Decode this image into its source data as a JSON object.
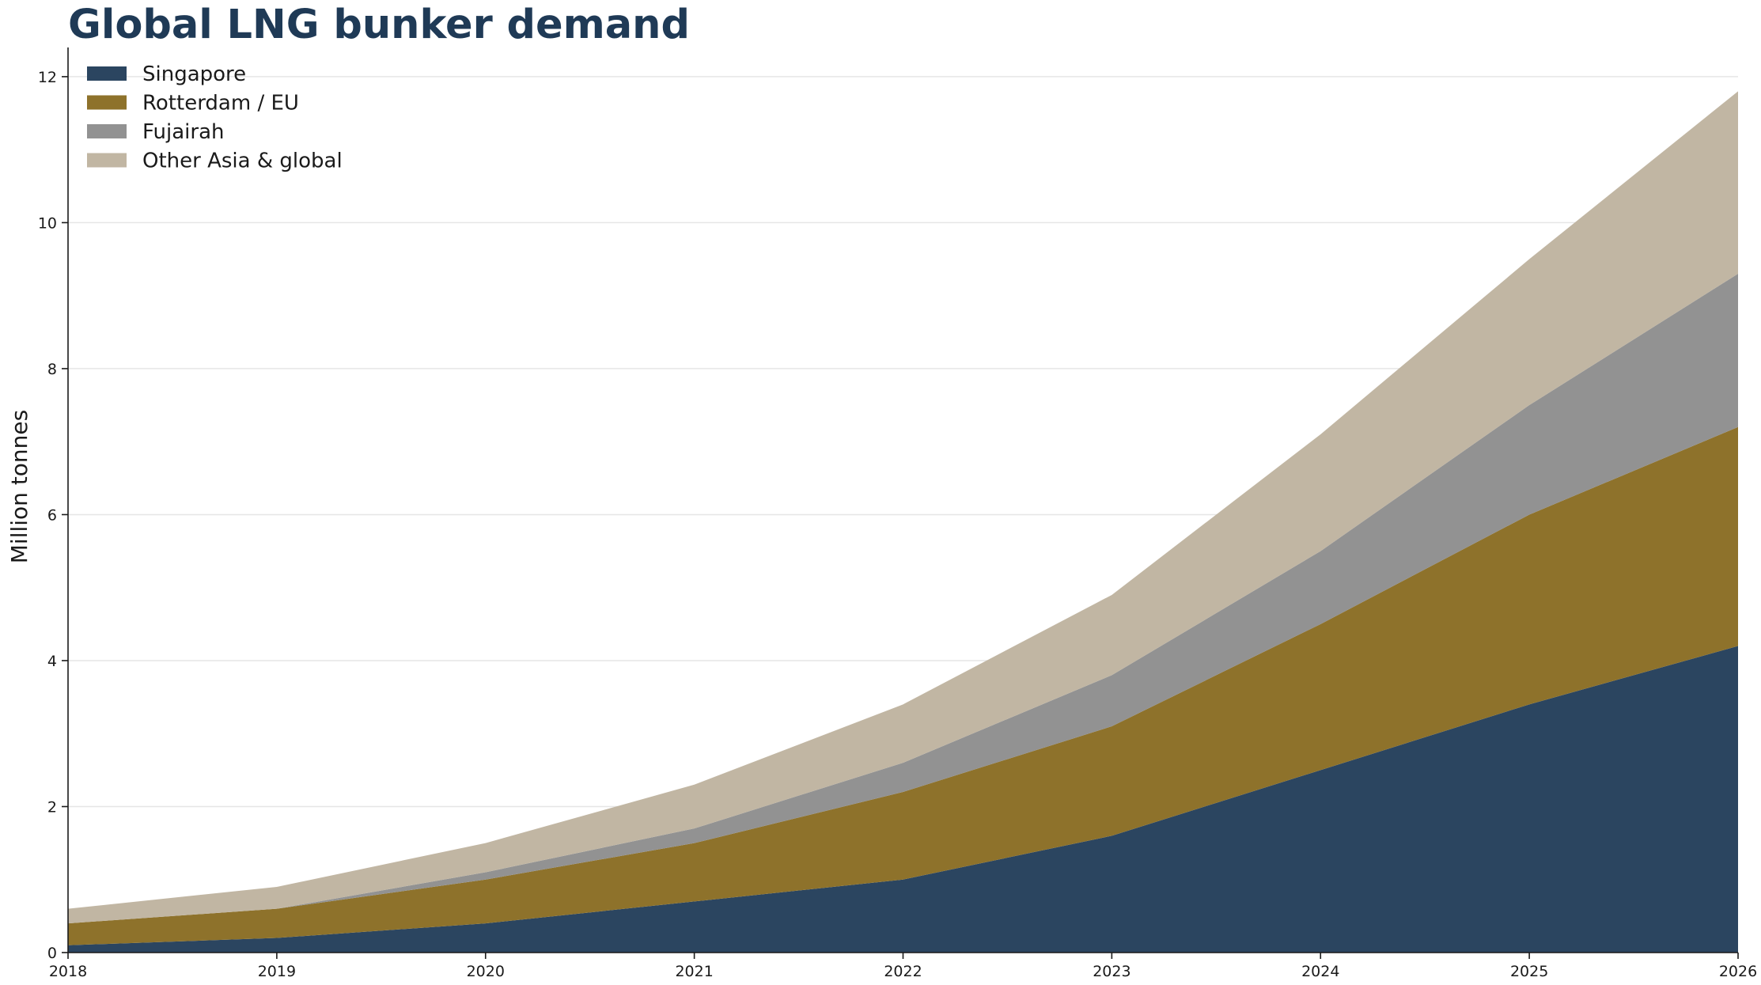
{
  "chart_data": {
    "type": "area",
    "stacked": true,
    "title": "Global LNG bunker demand",
    "xlabel": "",
    "ylabel": "Million tonnes",
    "x": [
      2018,
      2019,
      2020,
      2021,
      2022,
      2023,
      2024,
      2025,
      2026
    ],
    "xlim": [
      2018,
      2026
    ],
    "ylim": [
      0,
      12.4
    ],
    "yticks": [
      0,
      2,
      4,
      6,
      8,
      10,
      12
    ],
    "grid": "y-only",
    "legend_position": "top-left",
    "series": [
      {
        "name": "Singapore",
        "color": "#2b4560",
        "values": [
          0.1,
          0.2,
          0.4,
          0.7,
          1.0,
          1.6,
          2.5,
          3.4,
          4.2
        ]
      },
      {
        "name": "Rotterdam / EU",
        "color": "#8e722b",
        "values": [
          0.3,
          0.4,
          0.6,
          0.8,
          1.2,
          1.5,
          2.0,
          2.6,
          3.0
        ]
      },
      {
        "name": "Fujairah",
        "color": "#929292",
        "values": [
          0.0,
          0.0,
          0.1,
          0.2,
          0.4,
          0.7,
          1.0,
          1.5,
          2.1
        ]
      },
      {
        "name": "Other Asia & global",
        "color": "#c1b6a3",
        "values": [
          0.2,
          0.3,
          0.4,
          0.6,
          0.8,
          1.1,
          1.6,
          2.0,
          2.5
        ]
      }
    ]
  }
}
